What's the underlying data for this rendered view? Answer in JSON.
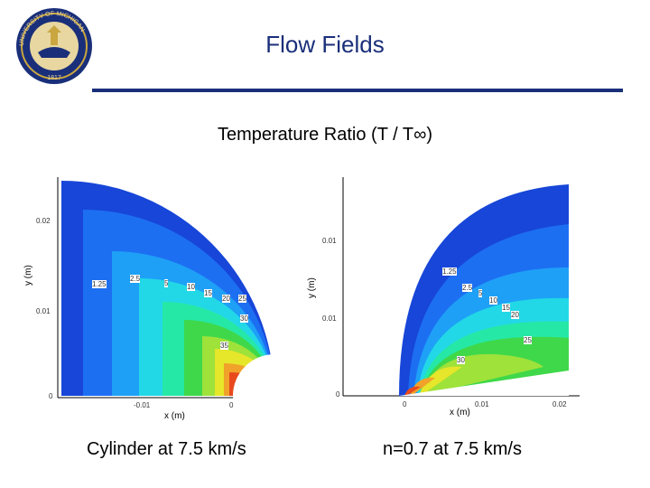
{
  "header": {
    "title": "Flow Fields",
    "seal_text": "UNIVERSITY OF MICHIGAN",
    "seal_year": "1817"
  },
  "subtitle": "Temperature Ratio (T / T∞)",
  "plots": [
    {
      "caption": "Cylinder at 7.5 km/s",
      "xlabel": "x (m)",
      "ylabel": "y (m)",
      "yticks": [
        "0.02",
        "0.01",
        "0"
      ],
      "xticks": [
        "-0.01",
        "0"
      ],
      "contour_labels": [
        "1.25",
        "2.5",
        "5",
        "10",
        "15",
        "20",
        "25",
        "30",
        "35"
      ]
    },
    {
      "caption": "n=0.7 at 7.5 km/s",
      "xlabel": "x (m)",
      "ylabel": "y (m)",
      "yticks": [
        "0.01",
        "0.01",
        "0"
      ],
      "xticks": [
        "0",
        "0.01",
        "0.02"
      ],
      "contour_labels": [
        "1.25",
        "2.5",
        "5",
        "10",
        "15",
        "20",
        "25",
        "30"
      ]
    }
  ]
}
